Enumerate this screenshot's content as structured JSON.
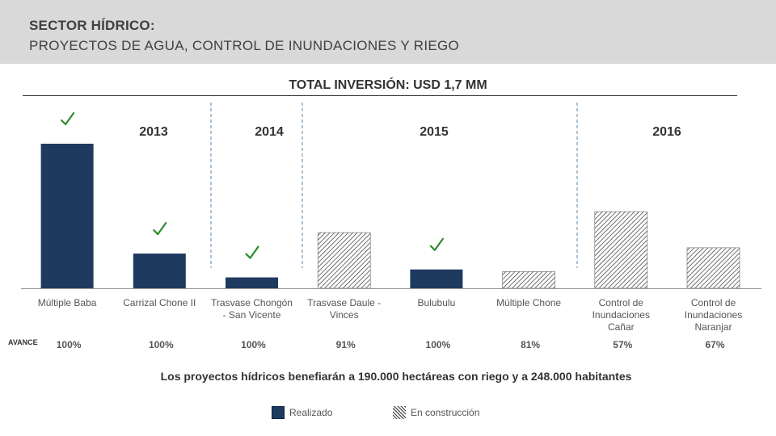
{
  "header": {
    "title": "SECTOR HÍDRICO:",
    "subtitle": "PROYECTOS  DE AGUA, CONTROL DE INUNDACIONES Y RIEGO"
  },
  "total_label": "TOTAL INVERSIÓN: USD 1,7 MM",
  "avance_label": "AVANCE",
  "footer_text": "Los proyectos hídricos benefiarán a 190.000 hectáreas con riego y a 248.000 habitantes",
  "legend": {
    "done": "Realizado",
    "construction": "En construcción"
  },
  "colors": {
    "done": "#1f3a5f",
    "check": "#2e8b2e",
    "divider": "#5b86a8"
  },
  "chart_data": {
    "type": "bar",
    "title": "TOTAL INVERSIÓN: USD 1,7 MM",
    "years": [
      "2013",
      "2014",
      "2015",
      "2016"
    ],
    "categories": [
      [
        "Múltiple Baba"
      ],
      [
        "Carrizal Chone II"
      ],
      [
        "Trasvase Chongón",
        "- San Vicente"
      ],
      [
        "Trasvase Daule -",
        "Vinces"
      ],
      [
        "Bulubulu"
      ],
      [
        "Múltiple Chone"
      ],
      [
        "Control de",
        "Inundaciones",
        "Cañar"
      ],
      [
        "Control de",
        "Inundaciones",
        "Naranjar"
      ]
    ],
    "values": [
      1.0,
      0.24,
      0.075,
      0.385,
      0.13,
      0.115,
      0.53,
      0.28
    ],
    "status": [
      "done",
      "done",
      "done",
      "construction",
      "done",
      "construction",
      "construction",
      "construction"
    ],
    "checked": [
      true,
      true,
      true,
      false,
      true,
      false,
      false,
      false
    ],
    "avance": [
      "100%",
      "100%",
      "100%",
      "91%",
      "100%",
      "81%",
      "57%",
      "67%"
    ],
    "ylim": [
      0,
      1.0
    ],
    "legend_position": "bottom"
  }
}
